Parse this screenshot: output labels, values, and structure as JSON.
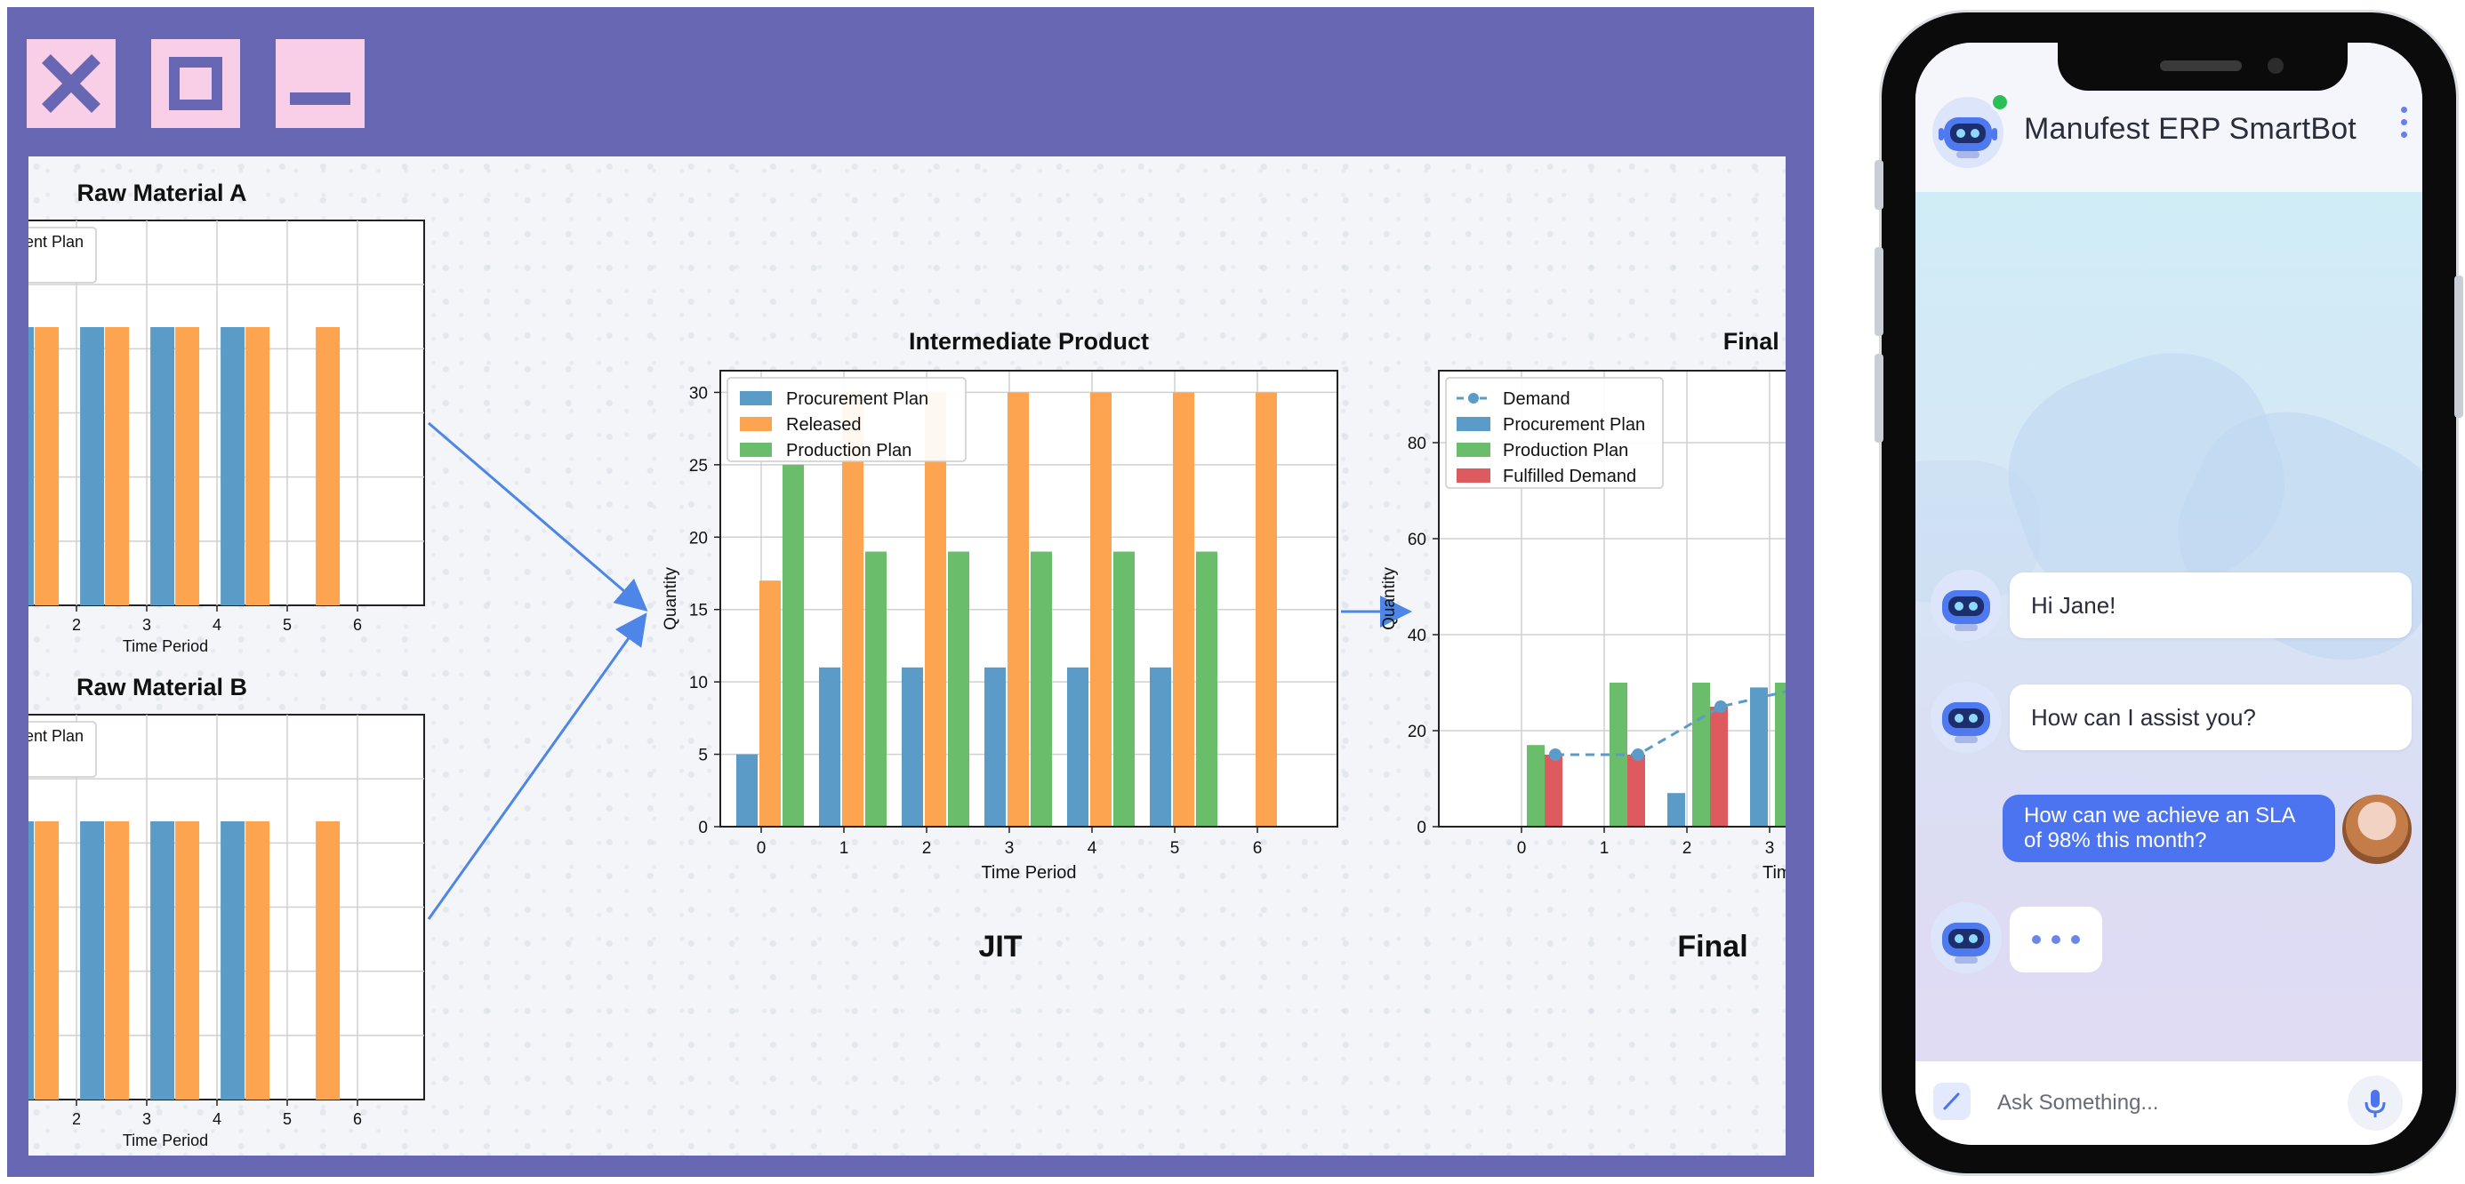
{
  "window_controls": {
    "close_icon": "close-icon",
    "maximize_icon": "maximize-icon",
    "minimize_icon": "minimize-icon",
    "accent_color": "#6767b3",
    "button_color": "#f8cfe6"
  },
  "workflow": {
    "jit_label": "JIT",
    "final_label": "Final"
  },
  "colors": {
    "procurement": "#5b9bc8",
    "released": "#fda450",
    "production": "#69bd6b",
    "fulfilled": "#dd5a5e",
    "demand": "#5b9bc8",
    "arrow": "#4d86e6"
  },
  "chart_data": [
    {
      "id": "raw_a",
      "type": "bar",
      "title": "Raw Material A",
      "xlabel": "Time Period",
      "x_ticks": [
        "2",
        "3",
        "4",
        "5",
        "6"
      ],
      "legend_text": "ent Plan",
      "series": [
        {
          "name": "Procurement Plan",
          "x": [
            1,
            2,
            3,
            4
          ],
          "values": [
            1,
            1,
            1,
            1
          ]
        },
        {
          "name": "Released",
          "x": [
            1,
            2,
            3,
            4,
            5
          ],
          "values": [
            1,
            1,
            1,
            1,
            1
          ]
        }
      ]
    },
    {
      "id": "raw_b",
      "type": "bar",
      "title": "Raw Material B",
      "xlabel": "Time Period",
      "x_ticks": [
        "2",
        "3",
        "4",
        "5",
        "6"
      ],
      "legend_text": "ent Plan",
      "series": [
        {
          "name": "Procurement Plan",
          "x": [
            1,
            2,
            3,
            4
          ],
          "values": [
            1,
            1,
            1,
            1
          ]
        },
        {
          "name": "Released",
          "x": [
            1,
            2,
            3,
            4,
            5
          ],
          "values": [
            1,
            1,
            1,
            1,
            1
          ]
        }
      ]
    },
    {
      "id": "intermediate",
      "type": "bar",
      "title": "Intermediate Product",
      "xlabel": "Time Period",
      "ylabel": "Quantity",
      "ylim": [
        0,
        31.5
      ],
      "x_ticks": [
        "0",
        "1",
        "2",
        "3",
        "4",
        "5",
        "6"
      ],
      "y_ticks": [
        "0",
        "5",
        "10",
        "15",
        "20",
        "25",
        "30"
      ],
      "legend": "top-left",
      "series": [
        {
          "name": "Procurement Plan",
          "values": [
            5,
            11,
            11,
            11,
            11,
            11,
            0
          ]
        },
        {
          "name": "Released",
          "values": [
            17,
            30,
            30,
            30,
            30,
            30,
            30
          ]
        },
        {
          "name": "Production Plan",
          "values": [
            25,
            19,
            19,
            19,
            19,
            19,
            0
          ]
        }
      ]
    },
    {
      "id": "final",
      "type": "bar",
      "title": "Final P",
      "xlabel": "Time P",
      "ylabel": "Quantity",
      "ylim": [
        0,
        95
      ],
      "x_ticks": [
        "0",
        "1",
        "2",
        "3"
      ],
      "y_ticks": [
        "0",
        "20",
        "40",
        "60",
        "80"
      ],
      "legend": "top-left",
      "series": [
        {
          "name": "Demand",
          "type": "line",
          "x": [
            0,
            1,
            2,
            3
          ],
          "values": [
            15,
            15,
            25,
            29
          ]
        },
        {
          "name": "Procurement Plan",
          "x": [
            2,
            3
          ],
          "values": [
            7,
            29
          ]
        },
        {
          "name": "Production Plan",
          "x": [
            0,
            1,
            2,
            3
          ],
          "values": [
            17,
            30,
            30,
            30
          ]
        },
        {
          "name": "Fulfilled Demand",
          "x": [
            0,
            1,
            2,
            3
          ],
          "values": [
            15,
            15,
            25,
            0
          ]
        }
      ]
    }
  ],
  "chatbot": {
    "title": "Manufest ERP SmartBot",
    "menu_icon": "kebab-menu-icon",
    "messages": [
      {
        "from": "bot",
        "text": "Hi Jane!"
      },
      {
        "from": "bot",
        "text": "How can I assist you?"
      },
      {
        "from": "user",
        "text": "How can we achieve an SLA of 98% this month?"
      }
    ],
    "typing_indicator": "typing-dots",
    "input": {
      "placeholder": "Ask Something...",
      "value": ""
    },
    "pencil_icon": "pencil-icon",
    "mic_icon": "microphone-icon",
    "accent": "#4d74f0"
  }
}
